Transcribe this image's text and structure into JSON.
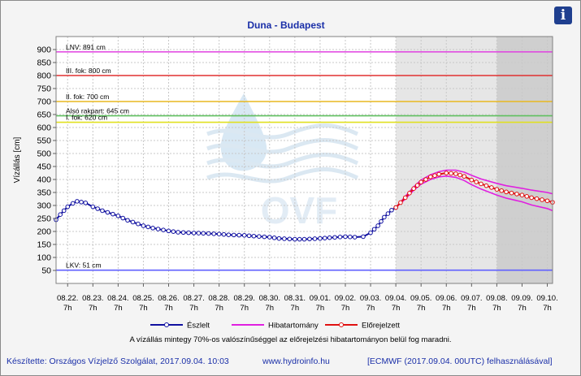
{
  "info_icon": "info-icon",
  "info_label": "i",
  "note": "A vízállás mintegy 70%-os valószínűséggel az előrejelzési hibatartományon belül fog maradni.",
  "footer": {
    "author": "Készítette: Országos Vízjelző Szolgálat, 2017.09.04. 10:03",
    "website": "www.hydroinfo.hu",
    "model": "[ECMWF (2017.09.04. 00UTC) felhasználásával]"
  },
  "watermark": "OVF",
  "colors": {
    "observed": "#1010a0",
    "band": "#e020e0",
    "forecast": "#e01010",
    "lnv": "#e040e0",
    "iii": "#e03030",
    "ii": "#e8b820",
    "also": "#60c060",
    "i": "#e0e020",
    "lkv": "#6060ff"
  },
  "chart_data": {
    "type": "line",
    "title": "Duna - Budapest",
    "ylabel": "Vízállás [cm]",
    "xlabel": "",
    "ylim": [
      0,
      950
    ],
    "yticks": [
      50,
      100,
      150,
      200,
      250,
      300,
      350,
      400,
      450,
      500,
      550,
      600,
      650,
      700,
      750,
      800,
      850,
      900
    ],
    "x_start": "08.21. 20h",
    "x_end": "09.10. 12h",
    "x_tick_dates": [
      "08.22.",
      "08.23.",
      "08.24.",
      "08.25.",
      "08.26.",
      "08.27.",
      "08.28.",
      "08.29.",
      "08.30.",
      "08.31.",
      "09.01.",
      "09.02.",
      "09.03.",
      "09.04.",
      "09.05.",
      "09.06.",
      "09.07.",
      "09.08.",
      "09.09.",
      "09.10."
    ],
    "x_tick_hour": "7h",
    "forecast_region_start": "09.04. 7h",
    "extended_region_start": "09.08. 7h",
    "thresholds": [
      {
        "label": "LNV: 891 cm",
        "value": 891,
        "color": "#e040e0"
      },
      {
        "label": "III. fok: 800 cm",
        "value": 800,
        "color": "#e03030"
      },
      {
        "label": "II. fok: 700 cm",
        "value": 700,
        "color": "#e8b820"
      },
      {
        "label": "Alsó rakpart: 645 cm",
        "value": 645,
        "color": "#60c060"
      },
      {
        "label": "I. fok: 620 cm",
        "value": 620,
        "color": "#e0e020"
      },
      {
        "label": "LKV: 51 cm",
        "value": 51,
        "color": "#6060ff"
      }
    ],
    "legend": [
      {
        "label": "Észlelt",
        "color": "#1010a0"
      },
      {
        "label": "Hibatartomány",
        "color": "#e020e0"
      },
      {
        "label": "Előrejelzett",
        "color": "#e01010"
      }
    ],
    "series": [
      {
        "name": "Észlelt",
        "points": [
          [
            "08.21. 20h",
            245
          ],
          [
            "08.22. 0h",
            265
          ],
          [
            "08.22. 7h",
            295
          ],
          [
            "08.22. 12h",
            308
          ],
          [
            "08.22. 16h",
            316
          ],
          [
            "08.23. 0h",
            310
          ],
          [
            "08.23. 7h",
            295
          ],
          [
            "08.23. 16h",
            280
          ],
          [
            "08.24. 7h",
            260
          ],
          [
            "08.24. 16h",
            243
          ],
          [
            "08.25. 7h",
            222
          ],
          [
            "08.25. 16h",
            213
          ],
          [
            "08.26. 7h",
            202
          ],
          [
            "08.26. 16h",
            197
          ],
          [
            "08.27. 7h",
            194
          ],
          [
            "08.27. 16h",
            193
          ],
          [
            "08.28. 7h",
            190
          ],
          [
            "08.28. 16h",
            187
          ],
          [
            "08.29. 7h",
            185
          ],
          [
            "08.29. 16h",
            182
          ],
          [
            "08.30. 7h",
            178
          ],
          [
            "08.30. 16h",
            173
          ],
          [
            "08.31. 7h",
            170
          ],
          [
            "08.31. 16h",
            170
          ],
          [
            "09.01. 7h",
            173
          ],
          [
            "09.01. 16h",
            176
          ],
          [
            "09.02. 7h",
            180
          ],
          [
            "09.02. 16h",
            178
          ],
          [
            "09.03. 0h",
            180
          ],
          [
            "09.03. 7h",
            195
          ],
          [
            "09.03. 14h",
            222
          ],
          [
            "09.03. 20h",
            255
          ],
          [
            "09.04. 3h",
            282
          ],
          [
            "09.04. 7h",
            292
          ]
        ]
      },
      {
        "name": "Előrejelzett",
        "points": [
          [
            "09.04. 7h",
            292
          ],
          [
            "09.04. 16h",
            330
          ],
          [
            "09.05. 0h",
            365
          ],
          [
            "09.05. 7h",
            390
          ],
          [
            "09.05. 16h",
            410
          ],
          [
            "09.06. 0h",
            420
          ],
          [
            "09.06. 7h",
            425
          ],
          [
            "09.06. 16h",
            422
          ],
          [
            "09.07. 0h",
            412
          ],
          [
            "09.07. 7h",
            398
          ],
          [
            "09.07. 16h",
            383
          ],
          [
            "09.08. 7h",
            362
          ],
          [
            "09.08. 16h",
            352
          ],
          [
            "09.09. 7h",
            340
          ],
          [
            "09.09. 16h",
            330
          ],
          [
            "09.10. 7h",
            318
          ],
          [
            "09.10. 12h",
            312
          ]
        ]
      },
      {
        "name": "Hibatartomány felső",
        "points": [
          [
            "09.04. 7h",
            292
          ],
          [
            "09.04. 16h",
            335
          ],
          [
            "09.05. 0h",
            372
          ],
          [
            "09.05. 7h",
            398
          ],
          [
            "09.05. 16h",
            418
          ],
          [
            "09.06. 0h",
            430
          ],
          [
            "09.06. 7h",
            436
          ],
          [
            "09.06. 16h",
            436
          ],
          [
            "09.07. 0h",
            428
          ],
          [
            "09.07. 7h",
            416
          ],
          [
            "09.07. 16h",
            402
          ],
          [
            "09.08. 7h",
            385
          ],
          [
            "09.08. 16h",
            376
          ],
          [
            "09.09. 7h",
            366
          ],
          [
            "09.09. 16h",
            359
          ],
          [
            "09.10. 7h",
            350
          ],
          [
            "09.10. 12h",
            345
          ]
        ]
      },
      {
        "name": "Hibatartomány alsó",
        "points": [
          [
            "09.04. 7h",
            292
          ],
          [
            "09.04. 16h",
            325
          ],
          [
            "09.05. 0h",
            358
          ],
          [
            "09.05. 7h",
            382
          ],
          [
            "09.05. 16h",
            400
          ],
          [
            "09.06. 0h",
            410
          ],
          [
            "09.06. 7h",
            413
          ],
          [
            "09.06. 16h",
            408
          ],
          [
            "09.07. 0h",
            396
          ],
          [
            "09.07. 7h",
            380
          ],
          [
            "09.07. 16h",
            363
          ],
          [
            "09.08. 7h",
            340
          ],
          [
            "09.08. 16h",
            328
          ],
          [
            "09.09. 7h",
            314
          ],
          [
            "09.09. 16h",
            302
          ],
          [
            "09.10. 7h",
            288
          ],
          [
            "09.10. 12h",
            280
          ]
        ]
      }
    ]
  }
}
